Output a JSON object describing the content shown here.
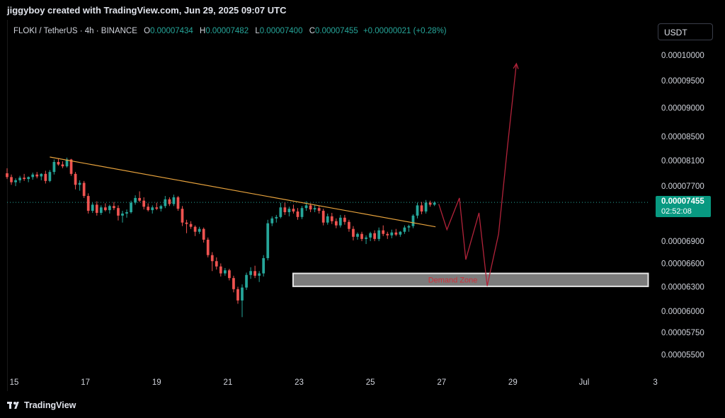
{
  "header": {
    "caption": "jiggyboy created with TradingView.com, Jun 29, 2025 09:07 UTC"
  },
  "legend": {
    "symbol": "FLOKI / TetherUS · 4h · BINANCE",
    "open_label": "O",
    "open": "0.00007434",
    "high_label": "H",
    "high": "0.00007482",
    "low_label": "L",
    "low": "0.00007400",
    "close_label": "C",
    "close": "0.00007455",
    "change": "+0.00000021 (+0.28%)"
  },
  "currency_button": "USDT",
  "last_price": {
    "price": "0.00007455",
    "countdown": "02:52:08"
  },
  "footer": {
    "brand": "TradingView"
  },
  "colors": {
    "up": "#26a69a",
    "down": "#ef5350",
    "trendline": "#e8a33d",
    "projection": "#b2233a",
    "zone_fill": "#8a8a8a",
    "zone_label": "#d0303a"
  },
  "chart_data": {
    "type": "candlestick",
    "y_scale": "log",
    "ylim": [
      5.3e-05,
      0.000104
    ],
    "y_ticks": [
      "0.00010000",
      "0.00009500",
      "0.00009000",
      "0.00008500",
      "0.00008100",
      "0.00007700",
      "0.00007455",
      "0.00006900",
      "0.00006600",
      "0.00006300",
      "0.00006000",
      "0.00005750",
      "0.00005500"
    ],
    "x_ticks": [
      {
        "label": "15",
        "x": 0.5
      },
      {
        "label": "17",
        "x": 2.5
      },
      {
        "label": "19",
        "x": 4.5
      },
      {
        "label": "21",
        "x": 6.5
      },
      {
        "label": "23",
        "x": 8.5
      },
      {
        "label": "25",
        "x": 10.5
      },
      {
        "label": "27",
        "x": 12.5
      },
      {
        "label": "29",
        "x": 14.5
      },
      {
        "label": "Jul",
        "x": 16.5
      },
      {
        "label": "3",
        "x": 18.5
      }
    ],
    "xlim": [
      0.3,
      18.35
    ],
    "candles": [
      [
        0.3,
        7.9e-05,
        7.98e-05,
        7.81e-05,
        7.84e-05
      ],
      [
        0.42,
        7.84e-05,
        7.88e-05,
        7.72e-05,
        7.76e-05
      ],
      [
        0.54,
        7.76e-05,
        7.82e-05,
        7.7e-05,
        7.79e-05
      ],
      [
        0.66,
        7.79e-05,
        7.86e-05,
        7.75e-05,
        7.83e-05
      ],
      [
        0.78,
        7.83e-05,
        7.89e-05,
        7.78e-05,
        7.81e-05
      ],
      [
        0.9,
        7.81e-05,
        7.85e-05,
        7.76e-05,
        7.84e-05
      ],
      [
        1.02,
        7.84e-05,
        7.91e-05,
        7.8e-05,
        7.88e-05
      ],
      [
        1.14,
        7.88e-05,
        7.92e-05,
        7.82e-05,
        7.85e-05
      ],
      [
        1.26,
        7.85e-05,
        7.9e-05,
        7.79e-05,
        7.89e-05
      ],
      [
        1.38,
        7.89e-05,
        7.94e-05,
        7.74e-05,
        7.78e-05
      ],
      [
        1.5,
        7.78e-05,
        7.95e-05,
        7.76e-05,
        7.92e-05
      ],
      [
        1.62,
        7.92e-05,
        8.12e-05,
        7.88e-05,
        8.08e-05
      ],
      [
        1.74,
        8.08e-05,
        8.14e-05,
        8.02e-05,
        8.04e-05
      ],
      [
        1.86,
        8.04e-05,
        8.09e-05,
        7.98e-05,
        8.01e-05
      ],
      [
        1.98,
        8.01e-05,
        8.15e-05,
        7.99e-05,
        8.12e-05
      ],
      [
        2.1,
        8.12e-05,
        8.13e-05,
        7.86e-05,
        7.89e-05
      ],
      [
        2.22,
        7.89e-05,
        7.92e-05,
        7.65e-05,
        7.72e-05
      ],
      [
        2.34,
        7.72e-05,
        7.79e-05,
        7.63e-05,
        7.75e-05
      ],
      [
        2.46,
        7.75e-05,
        7.78e-05,
        7.52e-05,
        7.55e-05
      ],
      [
        2.58,
        7.55e-05,
        7.59e-05,
        7.29e-05,
        7.33e-05
      ],
      [
        2.7,
        7.33e-05,
        7.45e-05,
        7.3e-05,
        7.42e-05
      ],
      [
        2.82,
        7.42e-05,
        7.47e-05,
        7.26e-05,
        7.3e-05
      ],
      [
        2.94,
        7.3e-05,
        7.41e-05,
        7.27e-05,
        7.38e-05
      ],
      [
        3.06,
        7.38e-05,
        7.44e-05,
        7.32e-05,
        7.34e-05
      ],
      [
        3.18,
        7.34e-05,
        7.42e-05,
        7.29e-05,
        7.4e-05
      ],
      [
        3.3,
        7.4e-05,
        7.46e-05,
        7.34e-05,
        7.37e-05
      ],
      [
        3.42,
        7.37e-05,
        7.41e-05,
        7.19e-05,
        7.26e-05
      ],
      [
        3.54,
        7.26e-05,
        7.33e-05,
        7.16e-05,
        7.29e-05
      ],
      [
        3.66,
        7.29e-05,
        7.35e-05,
        7.23e-05,
        7.31e-05
      ],
      [
        3.78,
        7.31e-05,
        7.48e-05,
        7.29e-05,
        7.45e-05
      ],
      [
        3.9,
        7.45e-05,
        7.56e-05,
        7.42e-05,
        7.52e-05
      ],
      [
        4.02,
        7.52e-05,
        7.62e-05,
        7.46e-05,
        7.48e-05
      ],
      [
        4.14,
        7.48e-05,
        7.53e-05,
        7.35e-05,
        7.39e-05
      ],
      [
        4.26,
        7.39e-05,
        7.44e-05,
        7.32e-05,
        7.34e-05
      ],
      [
        4.38,
        7.34e-05,
        7.41e-05,
        7.29e-05,
        7.38e-05
      ],
      [
        4.5,
        7.38e-05,
        7.45e-05,
        7.34e-05,
        7.36e-05
      ],
      [
        4.62,
        7.36e-05,
        7.42e-05,
        7.32e-05,
        7.4e-05
      ],
      [
        4.74,
        7.4e-05,
        7.55e-05,
        7.37e-05,
        7.5e-05
      ],
      [
        4.86,
        7.5e-05,
        7.53e-05,
        7.4e-05,
        7.43e-05
      ],
      [
        4.98,
        7.43e-05,
        7.57e-05,
        7.4e-05,
        7.53e-05
      ],
      [
        5.1,
        7.53e-05,
        7.55e-05,
        7.33e-05,
        7.36e-05
      ],
      [
        5.22,
        7.36e-05,
        7.4e-05,
        7.11e-05,
        7.16e-05
      ],
      [
        5.34,
        7.16e-05,
        7.2e-05,
        7.01e-05,
        7.14e-05
      ],
      [
        5.46,
        7.14e-05,
        7.18e-05,
        7.07e-05,
        7.1e-05
      ],
      [
        5.58,
        7.1e-05,
        7.12e-05,
        6.97e-05,
        7.03e-05
      ],
      [
        5.7,
        7.03e-05,
        7.1e-05,
        7e-05,
        7.07e-05
      ],
      [
        5.82,
        7.07e-05,
        7.09e-05,
        6.88e-05,
        6.92e-05
      ],
      [
        5.94,
        6.92e-05,
        6.95e-05,
        6.68e-05,
        6.71e-05
      ],
      [
        6.06,
        6.71e-05,
        6.75e-05,
        6.5e-05,
        6.63e-05
      ],
      [
        6.18,
        6.63e-05,
        6.68e-05,
        6.52e-05,
        6.56e-05
      ],
      [
        6.3,
        6.56e-05,
        6.6e-05,
        6.43e-05,
        6.47e-05
      ],
      [
        6.42,
        6.47e-05,
        6.54e-05,
        6.44e-05,
        6.51e-05
      ],
      [
        6.54,
        6.51e-05,
        6.53e-05,
        6.38e-05,
        6.41e-05
      ],
      [
        6.66,
        6.41e-05,
        6.44e-05,
        6.23e-05,
        6.27e-05
      ],
      [
        6.78,
        6.27e-05,
        6.3e-05,
        6.09e-05,
        6.13e-05
      ],
      [
        6.9,
        6.13e-05,
        6.33e-05,
        5.93e-05,
        6.29e-05
      ],
      [
        7.02,
        6.29e-05,
        6.48e-05,
        6.26e-05,
        6.45e-05
      ],
      [
        7.14,
        6.45e-05,
        6.55e-05,
        6.4e-05,
        6.5e-05
      ],
      [
        7.26,
        6.5e-05,
        6.57e-05,
        6.41e-05,
        6.44e-05
      ],
      [
        7.38,
        6.44e-05,
        6.5e-05,
        6.36e-05,
        6.47e-05
      ],
      [
        7.5,
        6.47e-05,
        6.71e-05,
        6.43e-05,
        6.67e-05
      ],
      [
        7.62,
        6.67e-05,
        7.2e-05,
        6.64e-05,
        7.15e-05
      ],
      [
        7.74,
        7.15e-05,
        7.25e-05,
        7.11e-05,
        7.22e-05
      ],
      [
        7.86,
        7.22e-05,
        7.27e-05,
        7.16e-05,
        7.24e-05
      ],
      [
        7.98,
        7.24e-05,
        7.45e-05,
        7.22e-05,
        7.38e-05
      ],
      [
        8.1,
        7.38e-05,
        7.45e-05,
        7.27e-05,
        7.31e-05
      ],
      [
        8.22,
        7.31e-05,
        7.39e-05,
        7.25e-05,
        7.36e-05
      ],
      [
        8.34,
        7.36e-05,
        7.42e-05,
        7.29e-05,
        7.32e-05
      ],
      [
        8.46,
        7.32e-05,
        7.37e-05,
        7.2e-05,
        7.24e-05
      ],
      [
        8.58,
        7.24e-05,
        7.4e-05,
        7.21e-05,
        7.37e-05
      ],
      [
        8.7,
        7.37e-05,
        7.47e-05,
        7.33e-05,
        7.41e-05
      ],
      [
        8.82,
        7.41e-05,
        7.44e-05,
        7.31e-05,
        7.35e-05
      ],
      [
        8.94,
        7.35e-05,
        7.41e-05,
        7.31e-05,
        7.37e-05
      ],
      [
        9.06,
        7.37e-05,
        7.4e-05,
        7.29e-05,
        7.33e-05
      ],
      [
        9.18,
        7.33e-05,
        7.36e-05,
        7.12e-05,
        7.16e-05
      ],
      [
        9.3,
        7.16e-05,
        7.29e-05,
        7.13e-05,
        7.25e-05
      ],
      [
        9.42,
        7.25e-05,
        7.3e-05,
        7.14e-05,
        7.18e-05
      ],
      [
        9.54,
        7.18e-05,
        7.22e-05,
        7.08e-05,
        7.12e-05
      ],
      [
        9.66,
        7.12e-05,
        7.27e-05,
        7.09e-05,
        7.23e-05
      ],
      [
        9.78,
        7.23e-05,
        7.27e-05,
        7.13e-05,
        7.17e-05
      ],
      [
        9.9,
        7.17e-05,
        7.2e-05,
        7.03e-05,
        7.07e-05
      ],
      [
        10.02,
        7.07e-05,
        7.11e-05,
        6.91e-05,
        6.96e-05
      ],
      [
        10.14,
        6.96e-05,
        7.02e-05,
        6.92e-05,
        7e-05
      ],
      [
        10.26,
        7e-05,
        7.03e-05,
        6.9e-05,
        6.93e-05
      ],
      [
        10.38,
        6.93e-05,
        6.98e-05,
        6.86e-05,
        6.95e-05
      ],
      [
        10.5,
        6.95e-05,
        7.03e-05,
        6.9e-05,
        7.01e-05
      ],
      [
        10.62,
        7.01e-05,
        7.05e-05,
        6.9e-05,
        6.93e-05
      ],
      [
        10.74,
        6.93e-05,
        7.09e-05,
        6.9e-05,
        7.05e-05
      ],
      [
        10.86,
        7.05e-05,
        7.12e-05,
        6.97e-05,
        7e-05
      ],
      [
        10.98,
        7e-05,
        7.03e-05,
        6.93e-05,
        6.98e-05
      ],
      [
        11.1,
        6.98e-05,
        7.06e-05,
        6.94e-05,
        7.02e-05
      ],
      [
        11.22,
        7.02e-05,
        7.07e-05,
        6.97e-05,
        6.99e-05
      ],
      [
        11.34,
        6.99e-05,
        7.04e-05,
        6.96e-05,
        7.03e-05
      ],
      [
        11.46,
        7.03e-05,
        7.12e-05,
        7e-05,
        7.09e-05
      ],
      [
        11.58,
        7.09e-05,
        7.13e-05,
        7.03e-05,
        7.11e-05
      ],
      [
        11.7,
        7.11e-05,
        7.28e-05,
        7.08e-05,
        7.26e-05
      ],
      [
        11.82,
        7.26e-05,
        7.45e-05,
        7.22e-05,
        7.41e-05
      ],
      [
        11.94,
        7.41e-05,
        7.46e-05,
        7.28e-05,
        7.32e-05
      ],
      [
        12.06,
        7.32e-05,
        7.49e-05,
        7.29e-05,
        7.45e-05
      ],
      [
        12.18,
        7.45e-05,
        7.48e-05,
        7.39e-05,
        7.42e-05
      ],
      [
        12.3,
        7.42e-05,
        7.47e-05,
        7.4e-05,
        7.45e-05
      ]
    ],
    "trendline": [
      [
        1.5,
        8.16e-05
      ],
      [
        12.33,
        7.1e-05
      ]
    ],
    "demand_zone": {
      "label": "Demand Zone",
      "x_range": [
        8.33,
        18.3
      ],
      "y_range": [
        6.305e-05,
        6.47e-05
      ]
    },
    "projection": [
      [
        12.42,
        7.43e-05
      ],
      [
        12.65,
        7.06e-05
      ],
      [
        13.0,
        7.52e-05
      ],
      [
        13.18,
        6.65e-05
      ],
      [
        13.55,
        7.3e-05
      ],
      [
        13.78,
        6.31e-05
      ],
      [
        14.1,
        7e-05
      ],
      [
        14.35,
        8.33e-05
      ],
      [
        14.6,
        9.83e-05
      ]
    ]
  }
}
